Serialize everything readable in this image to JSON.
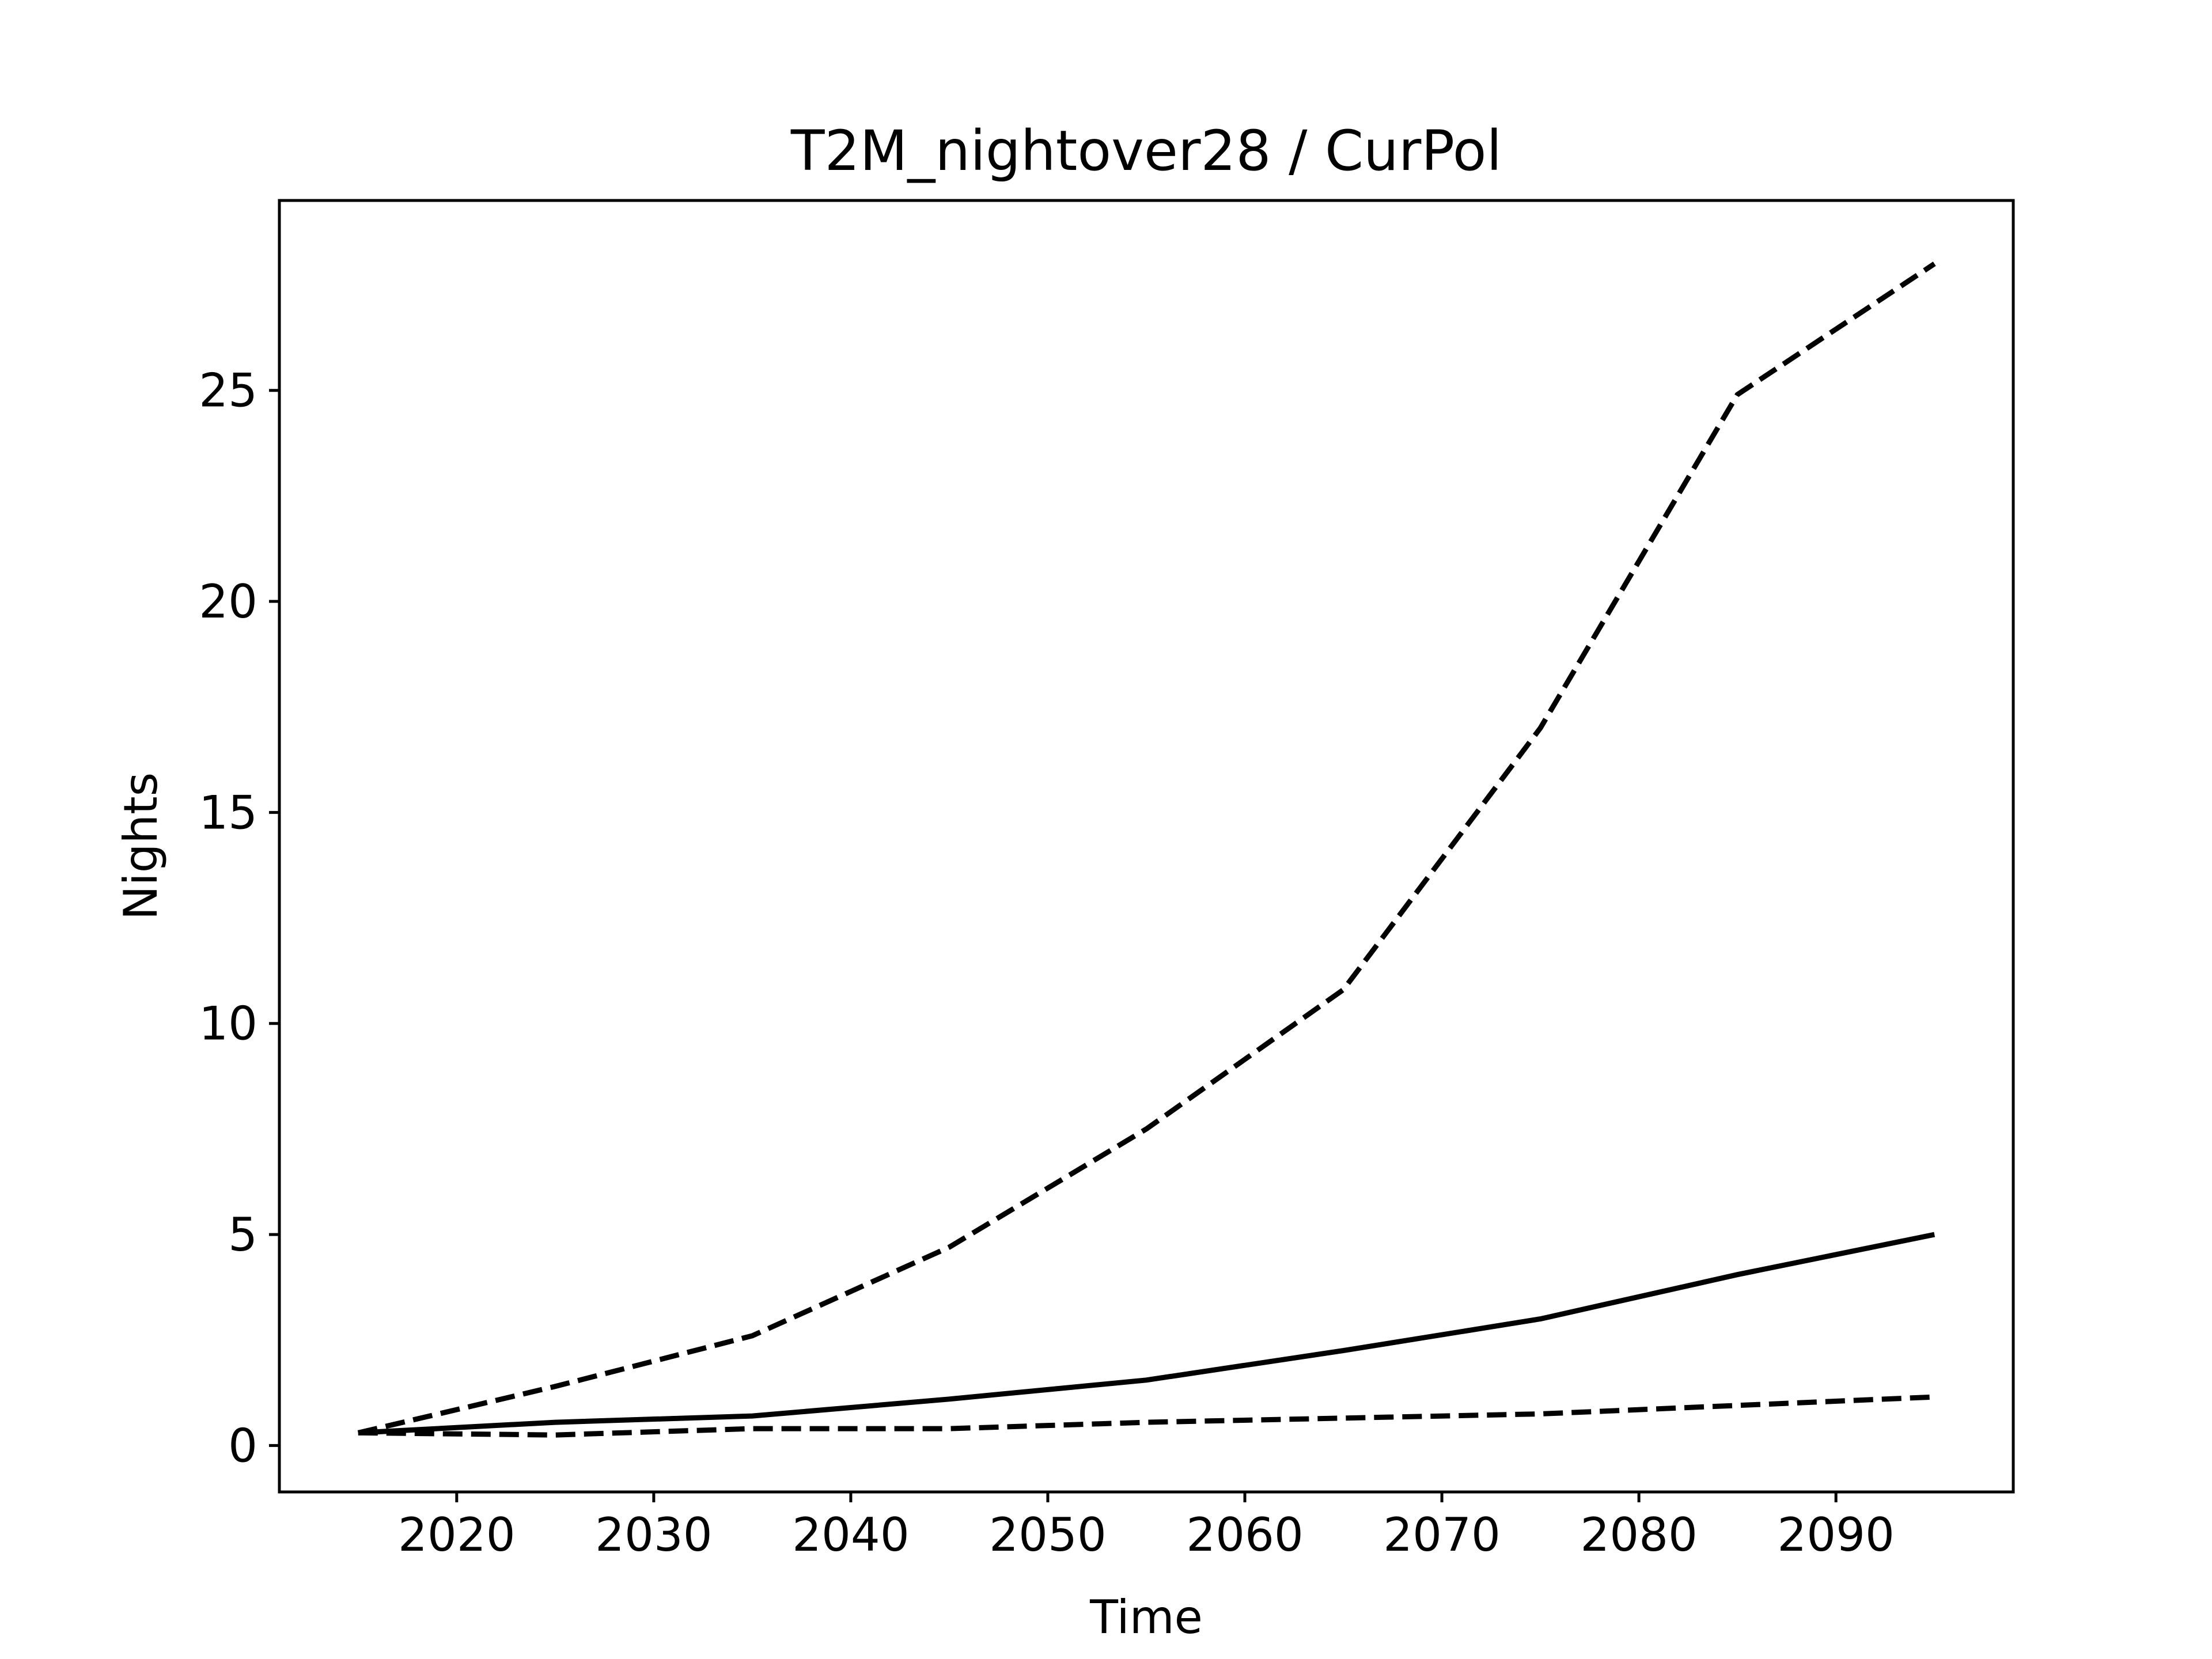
{
  "chart_data": {
    "type": "line",
    "title": "T2M_nightover28 / CurPol",
    "xlabel": "Time",
    "ylabel": "Nights",
    "xlim": [
      2011,
      2099
    ],
    "ylim": [
      -1.1,
      29.5
    ],
    "xticks": [
      2020,
      2030,
      2040,
      2050,
      2060,
      2070,
      2080,
      2090
    ],
    "yticks": [
      0,
      5,
      10,
      15,
      20,
      25
    ],
    "grid": false,
    "x": [
      2015,
      2025,
      2035,
      2045,
      2055,
      2065,
      2075,
      2085,
      2095
    ],
    "series": [
      {
        "values": [
          0.3,
          1.4,
          2.6,
          4.7,
          7.5,
          10.8,
          17.0,
          24.9,
          28.0
        ],
        "style": "dashed",
        "color": "#000000"
      },
      {
        "values": [
          0.3,
          0.55,
          0.7,
          1.1,
          1.55,
          2.25,
          3.0,
          4.05,
          5.0
        ],
        "style": "solid",
        "color": "#000000"
      },
      {
        "values": [
          0.3,
          0.25,
          0.4,
          0.4,
          0.55,
          0.65,
          0.75,
          0.95,
          1.15
        ],
        "style": "dashed",
        "color": "#000000"
      }
    ]
  }
}
